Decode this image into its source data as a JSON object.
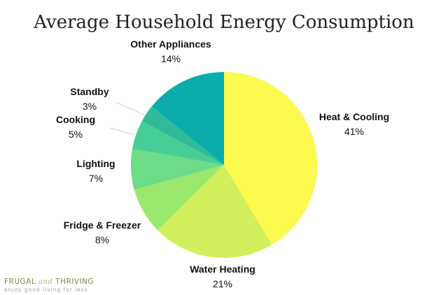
{
  "chart_data": {
    "type": "pie",
    "title": "Average Household Energy Consumption",
    "slices": [
      {
        "label": "Heat & Cooling",
        "value": 41,
        "display": "41%",
        "color": "#fafa4f"
      },
      {
        "label": "Water Heating",
        "value": 21,
        "display": "21%",
        "color": "#d2ef5c"
      },
      {
        "label": "Fridge & Freezer",
        "value": 8,
        "display": "8%",
        "color": "#9be86e"
      },
      {
        "label": "Lighting",
        "value": 7,
        "display": "7%",
        "color": "#6edb86"
      },
      {
        "label": "Cooking",
        "value": 5,
        "display": "5%",
        "color": "#47ce97"
      },
      {
        "label": "Standby",
        "value": 3,
        "display": "3%",
        "color": "#2fbb97"
      },
      {
        "label": "Other Appliances",
        "value": 14,
        "display": "14%",
        "color": "#0bacab"
      }
    ],
    "legend": "none"
  },
  "branding": {
    "name_part1": "FRUGAL",
    "name_and": "and",
    "name_part2": "THRIVING",
    "tagline": "enjoy good living for less"
  }
}
